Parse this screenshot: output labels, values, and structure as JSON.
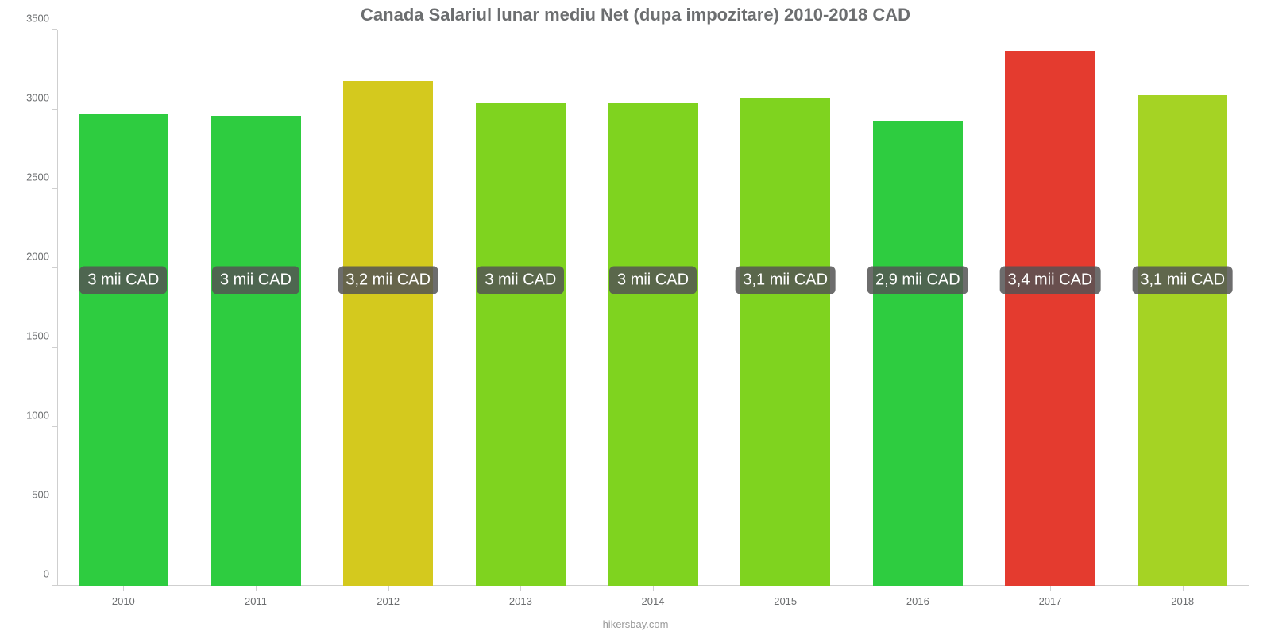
{
  "chart": {
    "type": "bar",
    "title": "Canada Salariul lunar mediu Net (dupa impozitare) 2010-2018 CAD",
    "title_fontsize": 22,
    "title_color": "#6c6e70",
    "background_color": "#ffffff",
    "axis_line_color": "#cfcfcf",
    "tick_label_color": "#6c6e70",
    "tick_label_fontsize": 13,
    "bar_width_ratio": 0.68,
    "ylim": [
      0,
      3500
    ],
    "ytick_step": 500,
    "yticks": [
      0,
      500,
      1000,
      1500,
      2000,
      2500,
      3000,
      3500
    ],
    "categories": [
      "2010",
      "2011",
      "2012",
      "2013",
      "2014",
      "2015",
      "2016",
      "2017",
      "2018"
    ],
    "values": [
      2970,
      2960,
      3180,
      3040,
      3040,
      3070,
      2930,
      3370,
      3090
    ],
    "value_labels": [
      "3 mii CAD",
      "3 mii CAD",
      "3,2 mii CAD",
      "3 mii CAD",
      "3 mii CAD",
      "3,1 mii CAD",
      "2,9 mii CAD",
      "3,4 mii CAD",
      "3,1 mii CAD"
    ],
    "bar_colors": [
      "#2ecc40",
      "#2ecc40",
      "#d4c91e",
      "#7fd31f",
      "#7fd31f",
      "#7fd31f",
      "#2ecc40",
      "#e43b2f",
      "#a5d324"
    ],
    "value_label_box_bg": "rgba(84,84,84,0.85)",
    "value_label_text_color": "#ffffff",
    "value_label_fontsize": 20,
    "value_label_y_value": 1750,
    "footer": "hikersbay.com",
    "footer_color": "#9a9a9a",
    "footer_fontsize": 13
  }
}
